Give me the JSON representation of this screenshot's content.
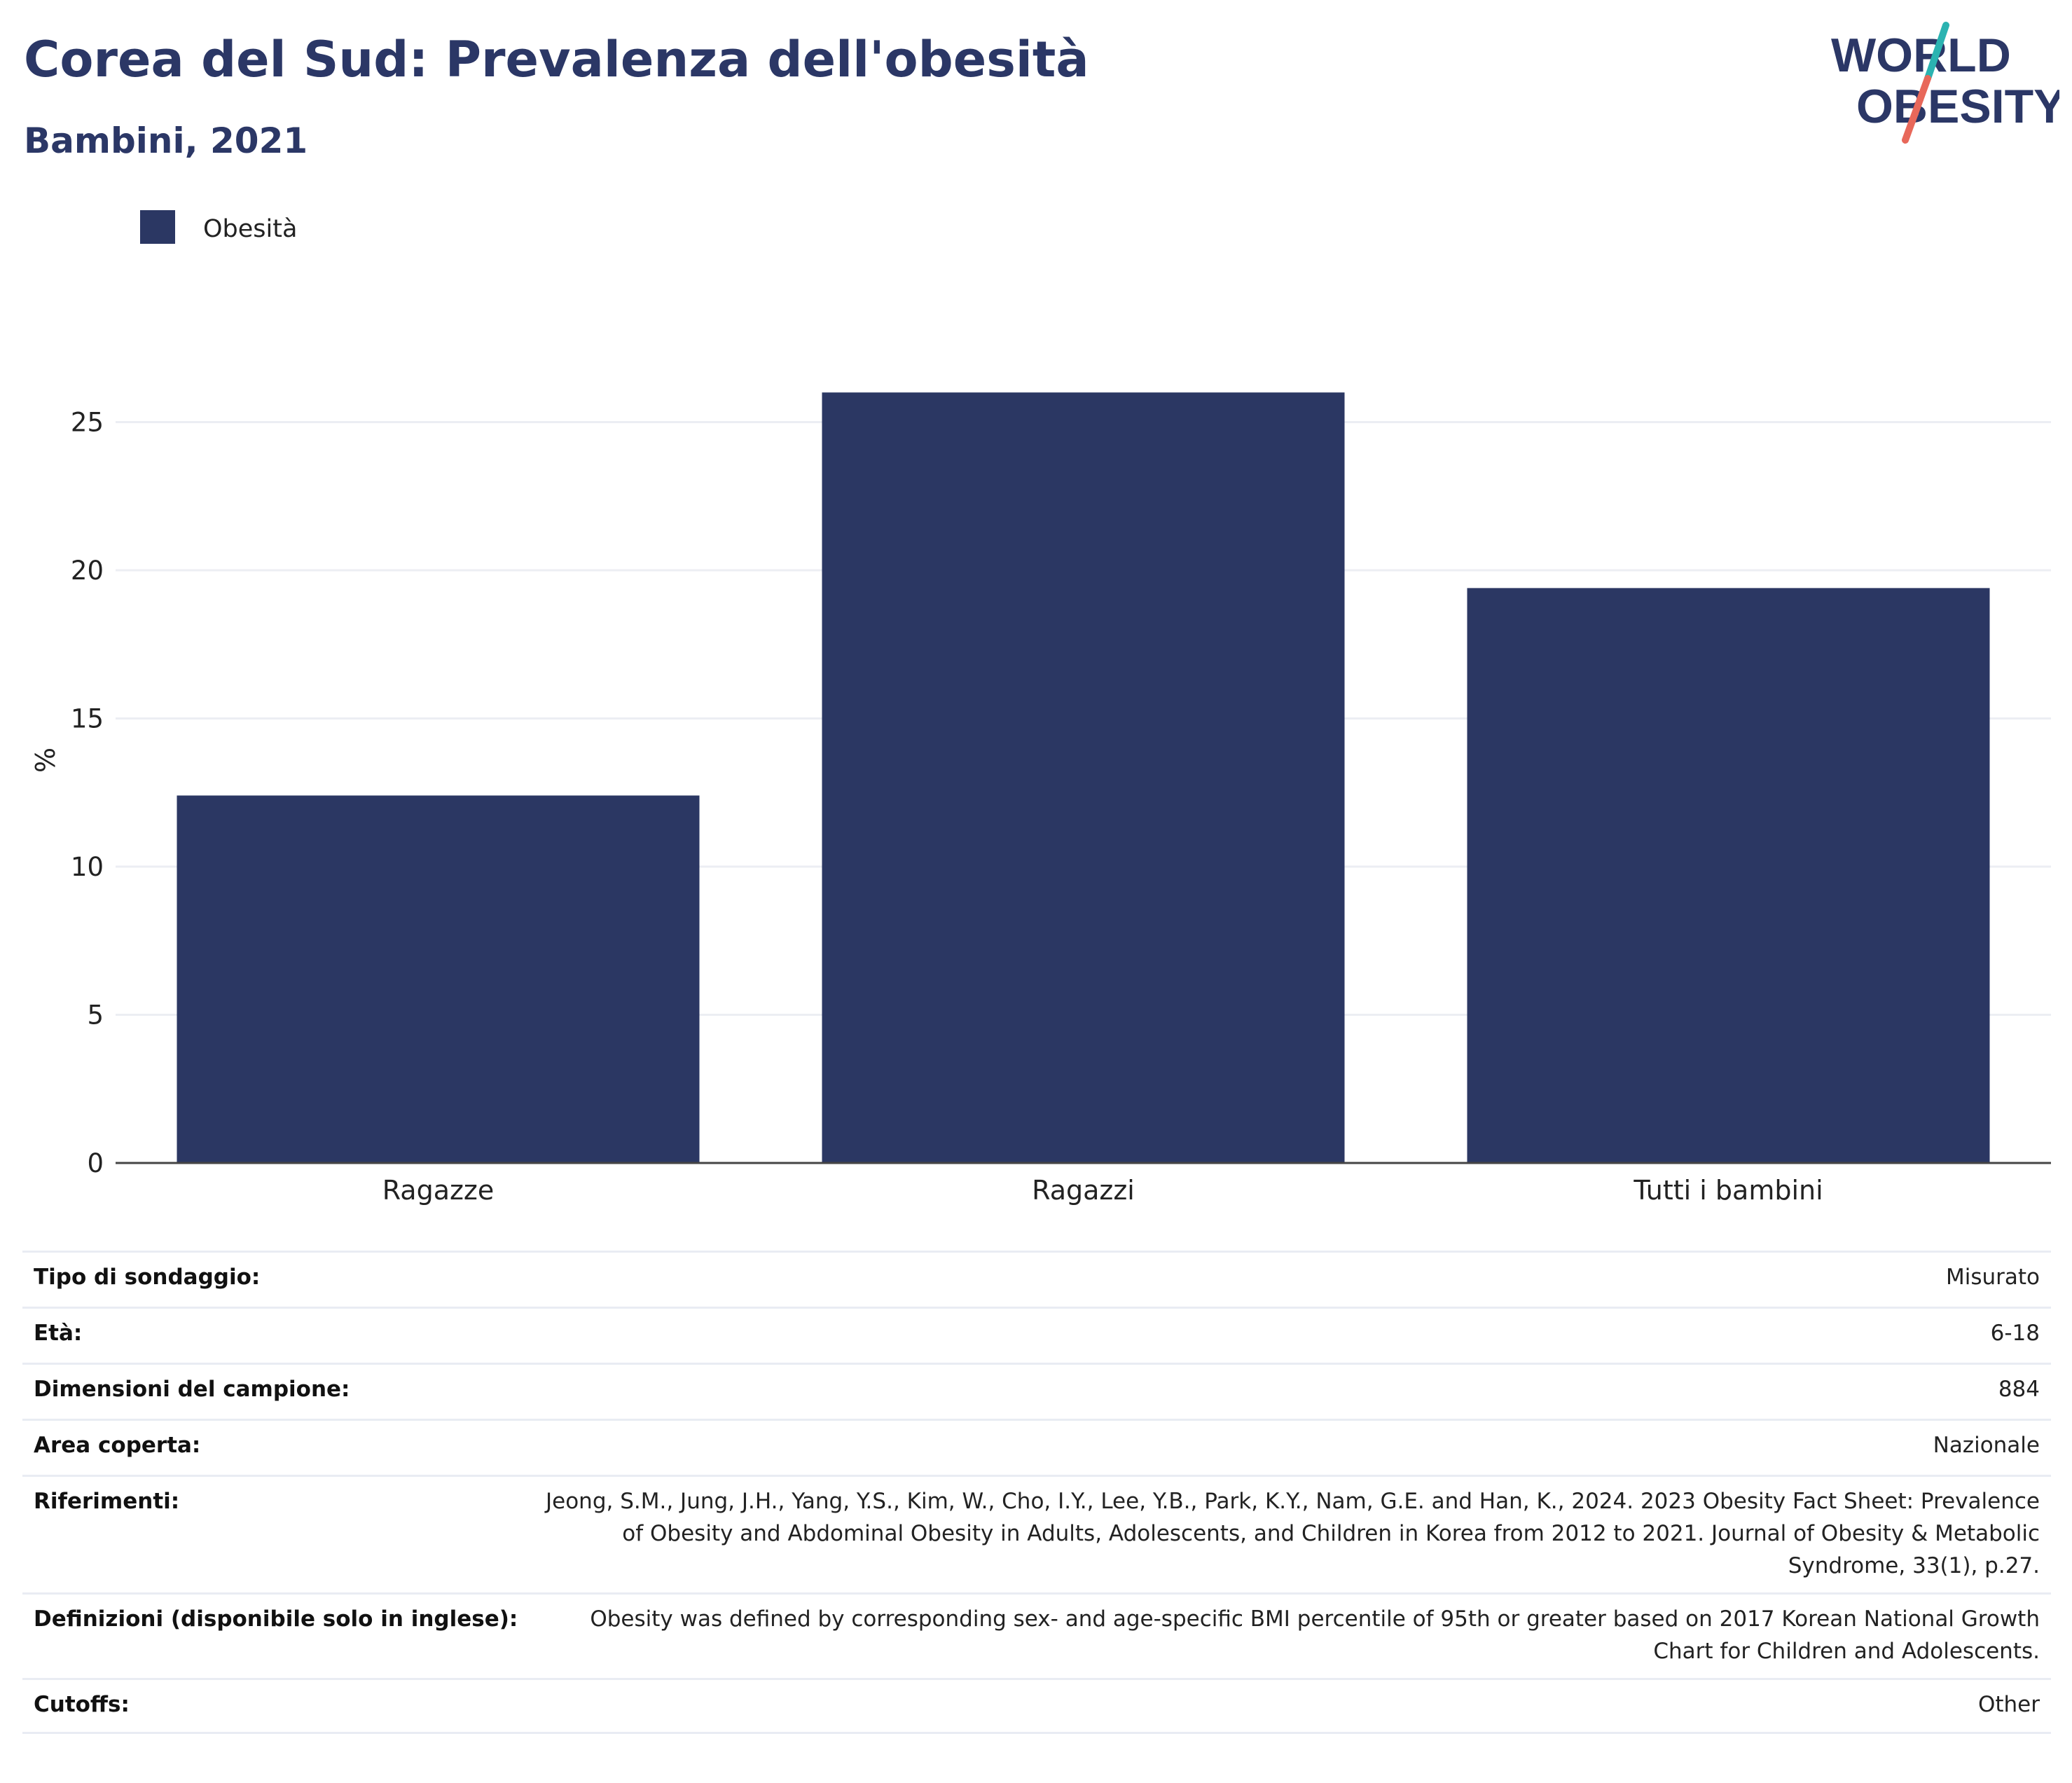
{
  "header": {
    "title": "Corea del Sud: Prevalenza dell'obesità",
    "subtitle": "Bambini, 2021"
  },
  "logo": {
    "line1": "WORLD",
    "line2": "OBESITY"
  },
  "colors": {
    "bar": "#2b3763",
    "title": "#2b3766",
    "logo_teal": "#2bb3b1",
    "logo_coral": "#e8685a"
  },
  "chart_data": {
    "type": "bar",
    "categories": [
      "Ragazze",
      "Ragazzi",
      "Tutti i bambini"
    ],
    "series": [
      {
        "name": "Obesità",
        "values": [
          12.4,
          26.0,
          19.4
        ]
      }
    ],
    "ylabel": "%",
    "xlabel": "",
    "ylim": [
      0,
      27
    ],
    "yticks": [
      0,
      5,
      10,
      15,
      20,
      25
    ],
    "grid": true,
    "legend": "top-left"
  },
  "table": [
    {
      "label": "Tipo di sondaggio:",
      "value": "Misurato"
    },
    {
      "label": "Età:",
      "value": "6-18"
    },
    {
      "label": "Dimensioni del campione:",
      "value": "884"
    },
    {
      "label": "Area coperta:",
      "value": "Nazionale"
    },
    {
      "label": "Riferimenti:",
      "value": "Jeong, S.M., Jung, J.H., Yang, Y.S., Kim, W., Cho, I.Y., Lee, Y.B., Park, K.Y., Nam, G.E. and Han, K., 2024. 2023 Obesity Fact Sheet: Prevalence of Obesity and Abdominal Obesity in Adults, Adolescents, and Children in Korea from 2012 to 2021. Journal of Obesity & Metabolic Syndrome, 33(1), p.27."
    },
    {
      "label": "Definizioni (disponibile solo in inglese):",
      "value": "Obesity was defined by corresponding sex- and age-specific BMI percentile of 95th or greater based on 2017 Korean National Growth Chart for Children and Adolescents."
    },
    {
      "label": "Cutoffs:",
      "value": "Other"
    }
  ]
}
